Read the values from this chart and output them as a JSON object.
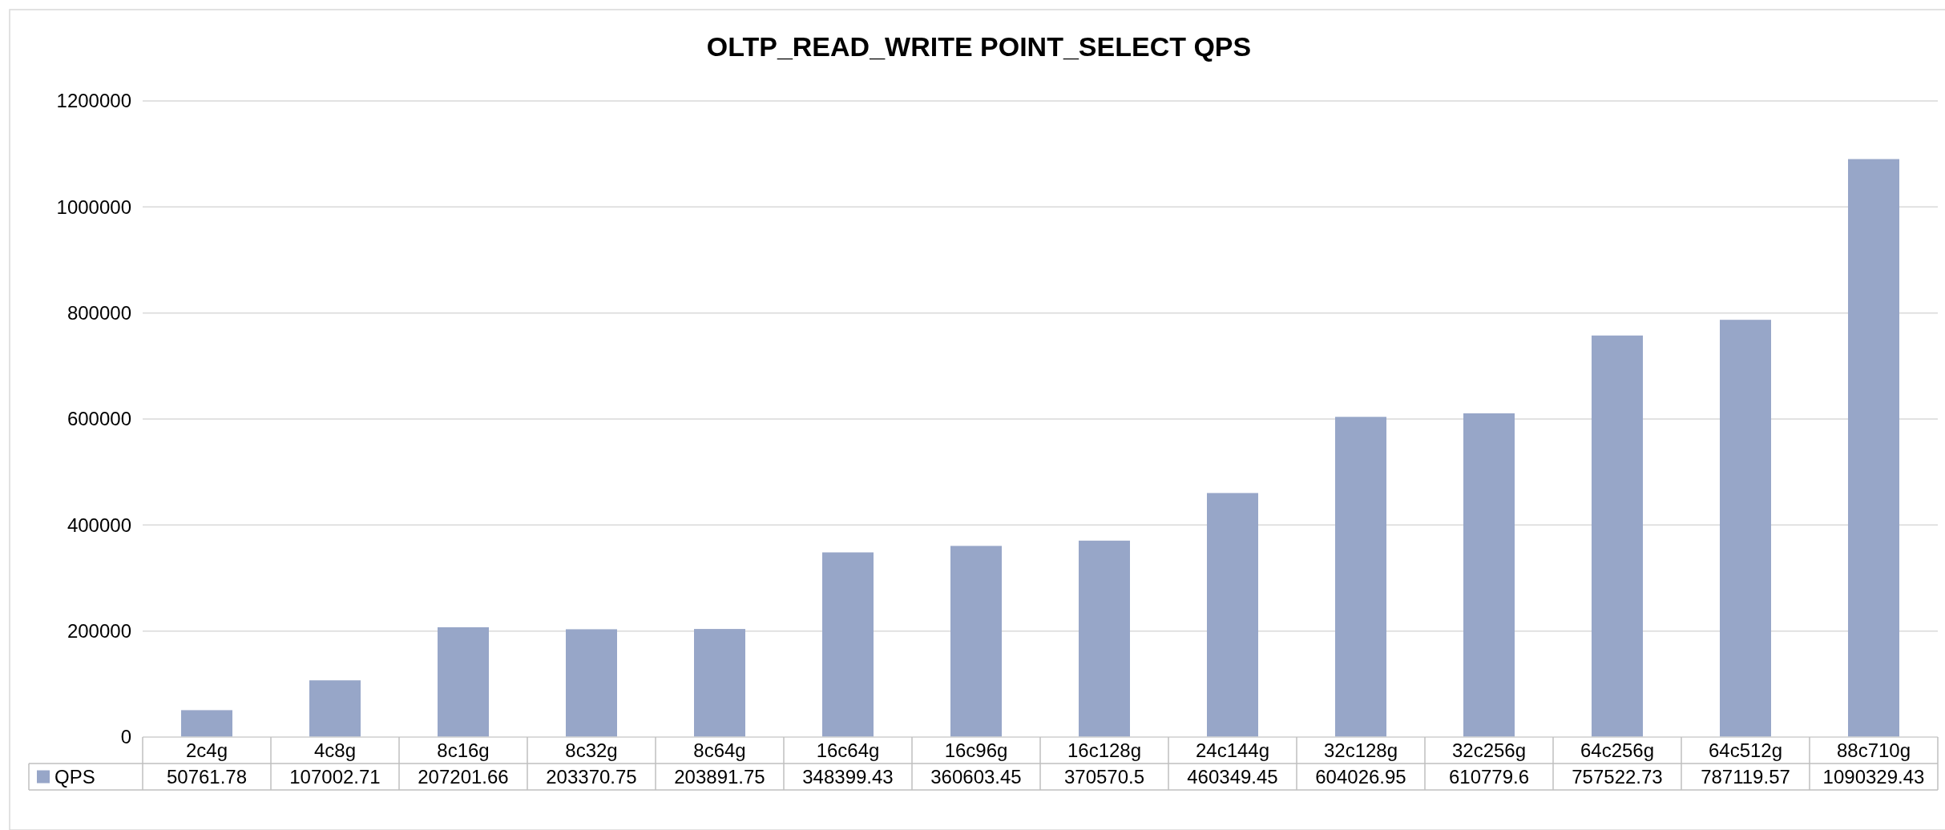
{
  "chart_data": {
    "type": "bar",
    "title": "OLTP_READ_WRITE POINT_SELECT QPS",
    "categories": [
      "2c4g",
      "4c8g",
      "8c16g",
      "8c32g",
      "8c64g",
      "16c64g",
      "16c96g",
      "16c128g",
      "24c144g",
      "32c128g",
      "32c256g",
      "64c256g",
      "64c512g",
      "88c710g"
    ],
    "series": [
      {
        "name": "QPS",
        "color": "#97a6c8",
        "values": [
          50761.78,
          107002.71,
          207201.66,
          203370.75,
          203891.75,
          348399.43,
          360603.45,
          370570.5,
          460349.45,
          604026.95,
          610779.6,
          757522.73,
          787119.57,
          1090329.43
        ]
      }
    ],
    "ylim": [
      0,
      1200000
    ],
    "yticks": [
      0,
      200000,
      400000,
      600000,
      800000,
      1000000,
      1200000
    ],
    "grid": "y",
    "data_labels": true,
    "legend": "bottom"
  }
}
